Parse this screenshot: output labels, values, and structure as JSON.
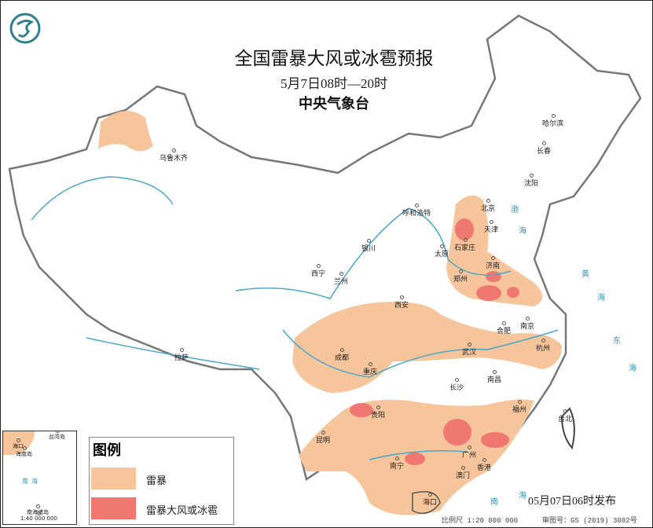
{
  "header": {
    "title": "全国雷暴大风或冰雹预报",
    "time_range": "5月7日08时—20时",
    "organization": "中央气象台"
  },
  "colors": {
    "thunderstorm": "#f7c59c",
    "severe": "#f07872",
    "border": "#777777",
    "river": "#4aa8c8",
    "logo": "#2e7f8f"
  },
  "logo_icon": "cma-logo-icon",
  "cities": [
    "乌鲁木齐",
    "哈尔滨",
    "长春",
    "沈阳",
    "北京",
    "天津",
    "呼和浩特",
    "石家庄",
    "太原",
    "济南",
    "郑州",
    "银川",
    "西宁",
    "兰州",
    "西安",
    "合肥",
    "南京",
    "杭州",
    "成都",
    "重庆",
    "武汉",
    "长沙",
    "南昌",
    "拉萨",
    "贵阳",
    "昆明",
    "福州",
    "台北",
    "南宁",
    "广州",
    "香港",
    "澳门",
    "海口"
  ],
  "seas": [
    "渤",
    "海",
    "黄",
    "海",
    "东",
    "海",
    "南",
    "海"
  ],
  "legend": {
    "title": "图例",
    "items": [
      {
        "label": "雷暴",
        "color": "#f7c59c"
      },
      {
        "label": "雷暴大风或冰雹",
        "color": "#f07872"
      }
    ]
  },
  "inset": {
    "labels": [
      "台湾岛",
      "海口",
      "海南岛",
      "南",
      "海",
      "南海诸岛",
      "1:40 000 000"
    ]
  },
  "issued": "05月07日06时发布",
  "footer": {
    "scale": "比例尺 1:20 000 000",
    "approval": "审图号：GS (2019) 3082号"
  }
}
